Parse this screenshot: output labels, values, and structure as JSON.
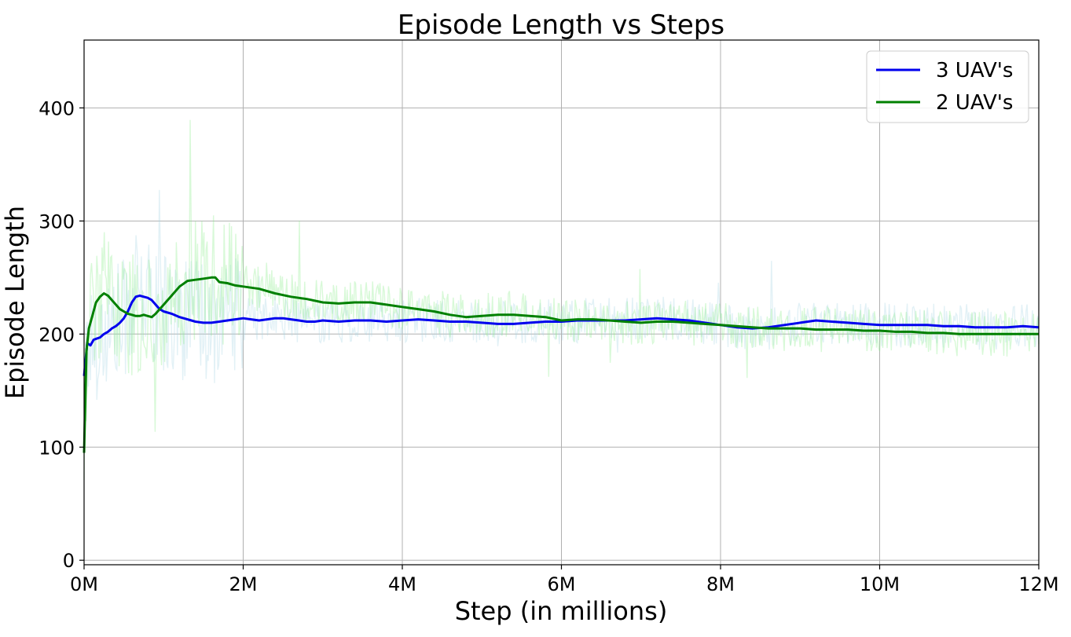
{
  "chart_data": {
    "type": "line",
    "title": "Episode Length vs Steps",
    "xlabel": "Step (in millions)",
    "ylabel": "Episode Length",
    "xlim": [
      0,
      12
    ],
    "ylim": [
      -4,
      460
    ],
    "grid": true,
    "legend_placement": "top-right",
    "x_ticks": [
      0,
      2,
      4,
      6,
      8,
      10,
      12
    ],
    "x_tick_labels": [
      "0M",
      "2M",
      "4M",
      "6M",
      "8M",
      "10M",
      "12M"
    ],
    "y_ticks": [
      0,
      100,
      200,
      300,
      400
    ],
    "y_tick_labels": [
      "0",
      "100",
      "200",
      "300",
      "400"
    ],
    "series": [
      {
        "name": "3 UAV's",
        "color": "#0000ee",
        "raw_color": "#add8e6",
        "x": [
          0,
          0.04,
          0.08,
          0.12,
          0.16,
          0.2,
          0.25,
          0.3,
          0.35,
          0.4,
          0.45,
          0.5,
          0.55,
          0.6,
          0.65,
          0.7,
          0.75,
          0.8,
          0.85,
          0.9,
          0.95,
          1.0,
          1.1,
          1.2,
          1.3,
          1.4,
          1.5,
          1.6,
          1.7,
          1.8,
          1.9,
          2.0,
          2.1,
          2.2,
          2.3,
          2.4,
          2.5,
          2.6,
          2.7,
          2.8,
          2.9,
          3.0,
          3.2,
          3.4,
          3.6,
          3.8,
          4.0,
          4.2,
          4.4,
          4.6,
          4.8,
          5.0,
          5.2,
          5.4,
          5.6,
          5.8,
          6.0,
          6.2,
          6.4,
          6.6,
          6.8,
          7.0,
          7.2,
          7.4,
          7.6,
          7.8,
          8.0,
          8.2,
          8.4,
          8.6,
          8.8,
          9.0,
          9.2,
          9.4,
          9.6,
          9.8,
          10.0,
          10.2,
          10.4,
          10.6,
          10.8,
          11.0,
          11.2,
          11.4,
          11.6,
          11.8,
          12.0
        ],
        "values": [
          163,
          192,
          190,
          195,
          196,
          197,
          200,
          202,
          205,
          207,
          210,
          214,
          220,
          228,
          233,
          234,
          233,
          232,
          230,
          226,
          222,
          220,
          218,
          215,
          213,
          211,
          210,
          210,
          211,
          212,
          213,
          214,
          213,
          212,
          213,
          214,
          214,
          213,
          212,
          211,
          211,
          212,
          211,
          212,
          212,
          211,
          212,
          213,
          212,
          211,
          211,
          210,
          209,
          209,
          210,
          211,
          211,
          212,
          212,
          212,
          212,
          213,
          214,
          213,
          212,
          210,
          208,
          206,
          205,
          206,
          208,
          210,
          212,
          211,
          210,
          209,
          208,
          208,
          208,
          208,
          207,
          207,
          206,
          206,
          206,
          207,
          206
        ]
      },
      {
        "name": "2 UAV's",
        "color": "#008000",
        "raw_color": "#90ee90",
        "x": [
          0,
          0.03,
          0.06,
          0.1,
          0.15,
          0.2,
          0.25,
          0.3,
          0.35,
          0.4,
          0.45,
          0.5,
          0.55,
          0.6,
          0.65,
          0.7,
          0.75,
          0.8,
          0.85,
          0.9,
          0.95,
          1.0,
          1.1,
          1.2,
          1.3,
          1.4,
          1.5,
          1.6,
          1.65,
          1.7,
          1.8,
          1.9,
          2.0,
          2.2,
          2.4,
          2.6,
          2.8,
          3.0,
          3.2,
          3.4,
          3.6,
          3.8,
          4.0,
          4.2,
          4.4,
          4.6,
          4.8,
          5.0,
          5.2,
          5.4,
          5.6,
          5.8,
          6.0,
          6.2,
          6.4,
          6.6,
          6.8,
          7.0,
          7.2,
          7.4,
          7.6,
          7.8,
          8.0,
          8.2,
          8.4,
          8.6,
          8.8,
          9.0,
          9.2,
          9.4,
          9.6,
          9.8,
          10.0,
          10.2,
          10.4,
          10.6,
          10.8,
          11.0,
          11.2,
          11.4,
          11.6,
          11.8,
          12.0
        ],
        "values": [
          95,
          185,
          205,
          215,
          228,
          233,
          236,
          234,
          230,
          226,
          222,
          220,
          218,
          217,
          216,
          216,
          217,
          216,
          215,
          218,
          222,
          226,
          234,
          242,
          247,
          248,
          249,
          250,
          250,
          246,
          245,
          243,
          242,
          240,
          236,
          233,
          231,
          228,
          227,
          228,
          228,
          226,
          224,
          222,
          220,
          217,
          215,
          216,
          217,
          217,
          216,
          215,
          212,
          213,
          213,
          212,
          211,
          210,
          211,
          211,
          210,
          209,
          208,
          207,
          206,
          205,
          205,
          205,
          204,
          204,
          204,
          203,
          203,
          202,
          202,
          201,
          201,
          200,
          200,
          200,
          200,
          200,
          200
        ]
      }
    ]
  }
}
